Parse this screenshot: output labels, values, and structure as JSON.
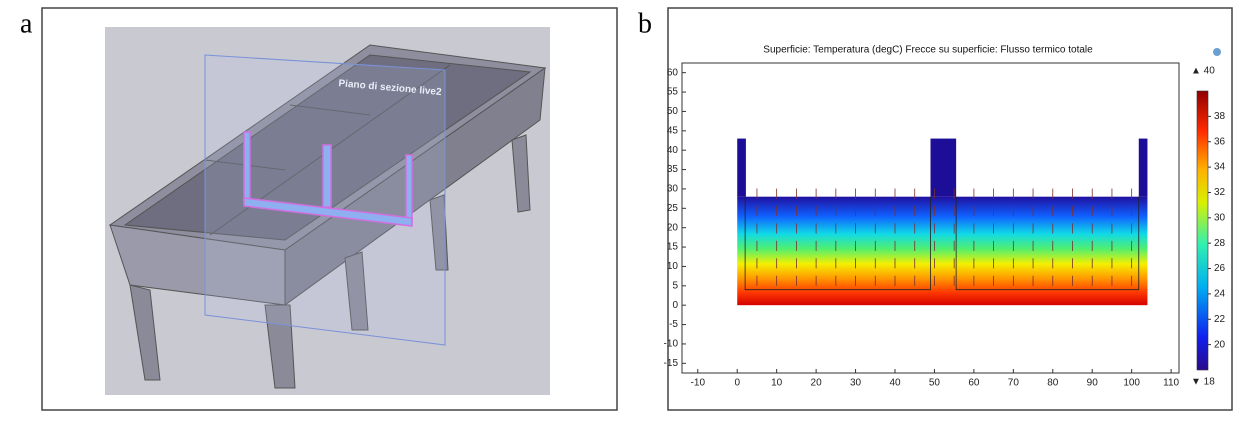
{
  "panel_a": {
    "letter": "a",
    "plane_label": "Piano di sezione live2"
  },
  "panel_b": {
    "letter": "b",
    "title": "Superficie: Temperatura (degC)  Frecce su superficie: Flusso termico totale",
    "xlim": [
      -14,
      112
    ],
    "ylim": [
      -17.5,
      62.5
    ],
    "xticks": [
      -10,
      0,
      10,
      20,
      30,
      40,
      50,
      60,
      70,
      80,
      90,
      100,
      110
    ],
    "yticks": [
      -15,
      -10,
      -5,
      0,
      5,
      10,
      15,
      20,
      25,
      30,
      35,
      40,
      45,
      50,
      55,
      60
    ],
    "clim": [
      18,
      40
    ],
    "cticks": [
      20,
      22,
      24,
      26,
      28,
      30,
      32,
      34,
      36,
      38
    ],
    "cmax_label": "▲ 40",
    "cmin_label": "▼ 18"
  }
}
